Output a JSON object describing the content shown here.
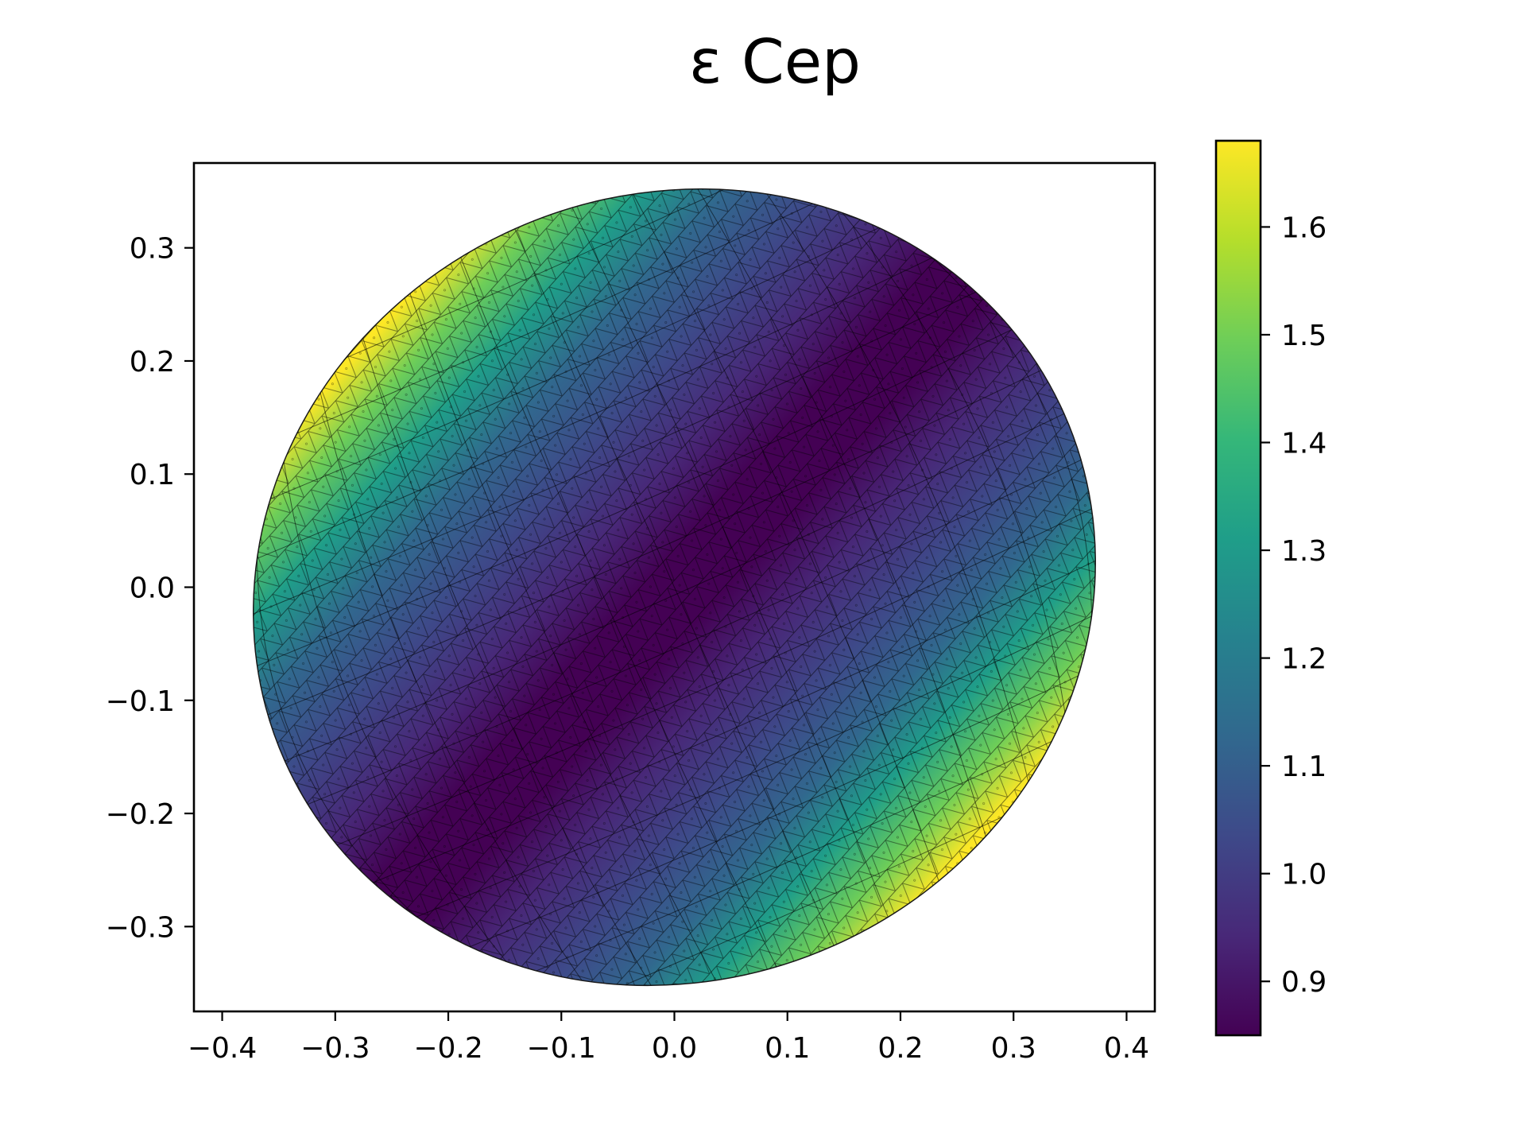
{
  "chart_data": {
    "type": "heatmap",
    "title": "ε Cep",
    "xlabel": "",
    "ylabel": "",
    "xlim": [
      -0.425,
      0.425
    ],
    "ylim": [
      -0.375,
      0.375
    ],
    "x_ticks": [
      -0.4,
      -0.3,
      -0.2,
      -0.1,
      0.0,
      0.1,
      0.2,
      0.3,
      0.4
    ],
    "x_tick_labels": [
      "−0.4",
      "−0.3",
      "−0.2",
      "−0.1",
      "0.0",
      "0.1",
      "0.2",
      "0.3",
      "0.4"
    ],
    "y_ticks": [
      0.3,
      0.2,
      0.1,
      0.0,
      -0.1,
      -0.2,
      -0.3
    ],
    "y_tick_labels": [
      "0.3",
      "0.2",
      "0.1",
      "0.0",
      "−0.1",
      "−0.2",
      "−0.3"
    ],
    "colorbar": {
      "colormap": "viridis",
      "range": [
        0.85,
        1.68
      ],
      "ticks": [
        0.9,
        1.0,
        1.1,
        1.2,
        1.3,
        1.4,
        1.5,
        1.6
      ],
      "tick_labels": [
        "0.9",
        "1.0",
        "1.1",
        "1.2",
        "1.3",
        "1.4",
        "1.5",
        "1.6"
      ]
    },
    "surface": {
      "shape": "triangulated ellipsoid",
      "x_extent": [
        -0.385,
        0.385
      ],
      "y_extent": [
        -0.34,
        0.34
      ],
      "value_min": 0.85,
      "value_max": 1.68,
      "min_band": "dark purple band crossing the center from lower-left to upper-right",
      "max_regions": [
        "upper-left rim",
        "lower-right rim"
      ]
    },
    "grid": false,
    "legend": "none"
  },
  "colors": {
    "viridis": [
      "#440154",
      "#482878",
      "#3e4989",
      "#31688e",
      "#26828e",
      "#1f9e89",
      "#35b779",
      "#6ece58",
      "#b5de2b",
      "#fde725"
    ],
    "frame": "#000000",
    "background": "#ffffff"
  }
}
